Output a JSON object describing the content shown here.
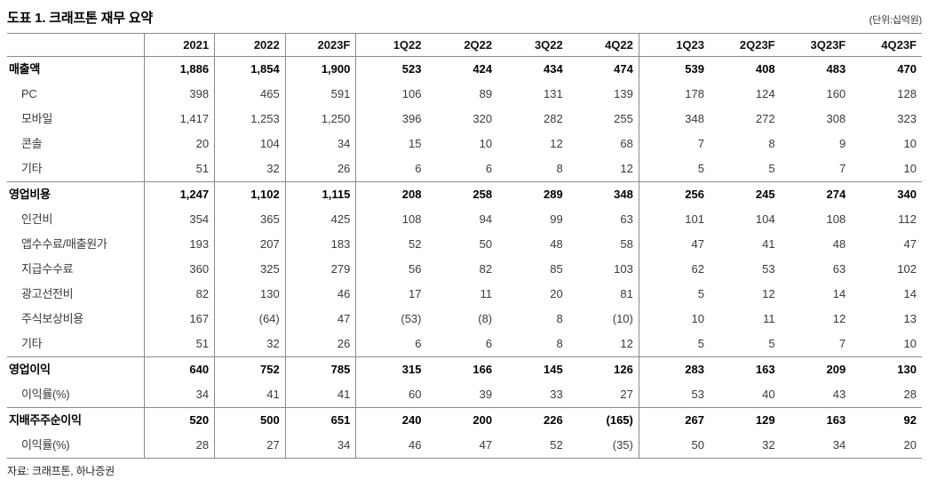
{
  "title": "도표 1. 크래프톤 재무 요약",
  "unit_note": "(단위:십억원)",
  "source": "자료: 크래프톤, 하나증권",
  "table": {
    "columns": [
      "2021",
      "2022",
      "2023F",
      "1Q22",
      "2Q22",
      "3Q22",
      "4Q22",
      "1Q23",
      "2Q23F",
      "3Q23F",
      "4Q23F"
    ],
    "divider_after_columns": [
      0,
      1,
      2,
      6
    ],
    "rows": [
      {
        "label": "매출액",
        "bold": true,
        "values": [
          "1,886",
          "1,854",
          "1,900",
          "523",
          "424",
          "434",
          "474",
          "539",
          "408",
          "483",
          "470"
        ]
      },
      {
        "label": "PC",
        "bold": false,
        "values": [
          "398",
          "465",
          "591",
          "106",
          "89",
          "131",
          "139",
          "178",
          "124",
          "160",
          "128"
        ]
      },
      {
        "label": "모바일",
        "bold": false,
        "values": [
          "1,417",
          "1,253",
          "1,250",
          "396",
          "320",
          "282",
          "255",
          "348",
          "272",
          "308",
          "323"
        ]
      },
      {
        "label": "콘솔",
        "bold": false,
        "values": [
          "20",
          "104",
          "34",
          "15",
          "10",
          "12",
          "68",
          "7",
          "8",
          "9",
          "10"
        ]
      },
      {
        "label": "기타",
        "bold": false,
        "values": [
          "51",
          "32",
          "26",
          "6",
          "6",
          "8",
          "12",
          "5",
          "5",
          "7",
          "10"
        ]
      },
      {
        "label": "영업비용",
        "bold": true,
        "values": [
          "1,247",
          "1,102",
          "1,115",
          "208",
          "258",
          "289",
          "348",
          "256",
          "245",
          "274",
          "340"
        ]
      },
      {
        "label": "인건비",
        "bold": false,
        "values": [
          "354",
          "365",
          "425",
          "108",
          "94",
          "99",
          "63",
          "101",
          "104",
          "108",
          "112"
        ]
      },
      {
        "label": "앱수수료/매출원가",
        "bold": false,
        "values": [
          "193",
          "207",
          "183",
          "52",
          "50",
          "48",
          "58",
          "47",
          "41",
          "48",
          "47"
        ]
      },
      {
        "label": "지급수수료",
        "bold": false,
        "values": [
          "360",
          "325",
          "279",
          "56",
          "82",
          "85",
          "103",
          "62",
          "53",
          "63",
          "102"
        ]
      },
      {
        "label": "광고선전비",
        "bold": false,
        "values": [
          "82",
          "130",
          "46",
          "17",
          "11",
          "20",
          "81",
          "5",
          "12",
          "14",
          "14"
        ]
      },
      {
        "label": "주식보상비용",
        "bold": false,
        "values": [
          "167",
          "(64)",
          "47",
          "(53)",
          "(8)",
          "8",
          "(10)",
          "10",
          "11",
          "12",
          "13"
        ]
      },
      {
        "label": "기타",
        "bold": false,
        "values": [
          "51",
          "32",
          "26",
          "6",
          "6",
          "8",
          "12",
          "5",
          "5",
          "7",
          "10"
        ]
      },
      {
        "label": "영업이익",
        "bold": true,
        "values": [
          "640",
          "752",
          "785",
          "315",
          "166",
          "145",
          "126",
          "283",
          "163",
          "209",
          "130"
        ]
      },
      {
        "label": "이익률(%)",
        "bold": false,
        "values": [
          "34",
          "41",
          "41",
          "60",
          "39",
          "33",
          "27",
          "53",
          "40",
          "43",
          "28"
        ]
      },
      {
        "label": "지배주주순이익",
        "bold": true,
        "values": [
          "520",
          "500",
          "651",
          "240",
          "200",
          "226",
          "(165)",
          "267",
          "129",
          "163",
          "92"
        ]
      },
      {
        "label": "이익률(%)",
        "bold": false,
        "values": [
          "28",
          "27",
          "34",
          "46",
          "47",
          "52",
          "(35)",
          "50",
          "32",
          "34",
          "20"
        ]
      }
    ]
  }
}
